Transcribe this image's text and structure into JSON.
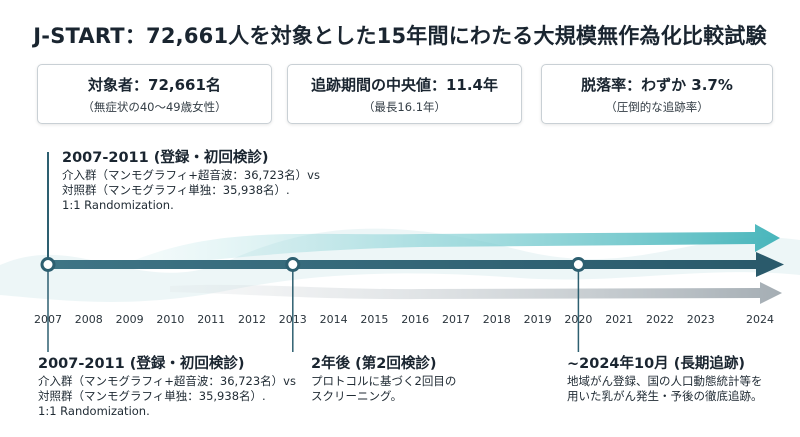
{
  "title": "J-START：72,661人を対象とした15年間にわたる大規模無作為化比較試験",
  "cards": [
    {
      "main": "対象者：72,661名",
      "sub": "（無症状の40〜49歳女性）"
    },
    {
      "main": "追跡期間の中央値：11.4年",
      "sub": "（最長16.1年）"
    },
    {
      "main": "脱落率：わずか 3.7%",
      "sub": "（圧倒的な追跡率）"
    }
  ],
  "top_event": {
    "head": "2007-2011 (登録・初回検診)",
    "lines": [
      "介入群（マンモグラフィ+超音波：36,723名）vs",
      "対照群（マンモグラフィ単独：35,938名）.",
      "1:1 Randomization."
    ]
  },
  "bottom_events": [
    {
      "head": "2007-2011 (登録・初回検診)",
      "lines": [
        "介入群（マンモグラフィ+超音波：36,723名）vs",
        "対照群（マンモグラフィ単独：35,938名）.",
        "1:1 Randomization."
      ]
    },
    {
      "head": "2年後 (第2回検診)",
      "lines": [
        "プロトコルに基づく2回目の",
        "スクリーニング。"
      ]
    },
    {
      "head": "~2024年10月 (長期追跡)",
      "lines": [
        "地域がん登録、国の人口動態統計等を",
        "用いた乳がん発生・予後の徹底追跡。"
      ]
    }
  ],
  "timeline": {
    "ticks": [
      "2007",
      "2008",
      "2009",
      "2010",
      "2011",
      "2012",
      "2013",
      "2014",
      "2015",
      "2016",
      "2017",
      "2018",
      "2019",
      "2020",
      "2021",
      "2022",
      "2023",
      "2024"
    ],
    "milestones": [
      "2007",
      "2013",
      "2020"
    ],
    "colors": {
      "teal": "#4fb8bd",
      "dark": "#2d5f70",
      "gray": "#8e99a1"
    }
  }
}
